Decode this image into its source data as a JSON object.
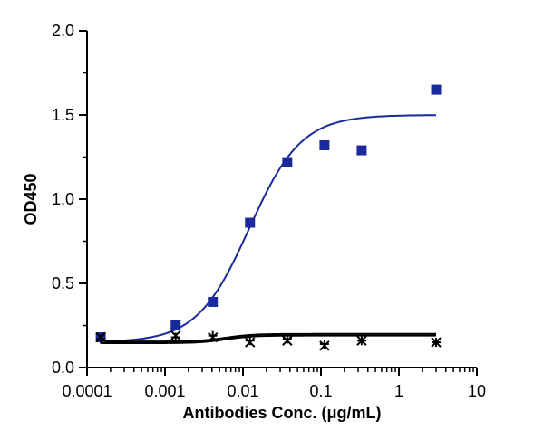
{
  "chart_data": {
    "type": "scatter",
    "title": "",
    "xlabel": "Antibodies Conc. (μg/mL)",
    "ylabel": "OD450",
    "xscale": "log",
    "xlim": [
      0.0001,
      10
    ],
    "ylim": [
      0,
      2.0
    ],
    "x_ticks": [
      0.0001,
      0.001,
      0.01,
      0.1,
      1,
      10
    ],
    "x_tick_labels": [
      "0.0001",
      "0.001",
      "0.01",
      "0.1",
      "1",
      "10"
    ],
    "y_ticks": [
      0,
      0.5,
      1.0,
      1.5,
      2.0
    ],
    "y_tick_labels": [
      "0.0",
      "0.5",
      "1.0",
      "1.5",
      "2.0"
    ],
    "grid": false,
    "series": [
      {
        "marker": "square",
        "color": "#1a2a9c",
        "x": [
          0.00015,
          0.00137,
          0.0041,
          0.0123,
          0.037,
          0.111,
          0.333,
          3.0
        ],
        "y": [
          0.18,
          0.25,
          0.39,
          0.86,
          1.22,
          1.32,
          1.29,
          1.65
        ],
        "fit": {
          "model": "4PL",
          "bottom": 0.15,
          "top": 1.5,
          "ec50": 0.012,
          "hill": 1.3
        }
      },
      {
        "marker": "x",
        "color": "#000000",
        "x": [
          0.00015,
          0.00137,
          0.0041,
          0.0123,
          0.037,
          0.111,
          0.333,
          3.0
        ],
        "y": [
          0.18,
          0.19,
          0.18,
          0.15,
          0.16,
          0.13,
          0.16,
          0.15
        ],
        "fit": {
          "model": "4PL",
          "bottom": 0.155,
          "top": 0.2,
          "ec50": 0.006,
          "hill": 2.5
        }
      },
      {
        "marker": "plus",
        "color": "#000000",
        "x": [
          0.00015,
          0.00137,
          0.0041,
          0.0123,
          0.037,
          0.111,
          0.333,
          3.0
        ],
        "y": [
          0.17,
          0.18,
          0.19,
          0.16,
          0.17,
          0.14,
          0.16,
          0.15
        ],
        "fit": {
          "model": "4PL",
          "bottom": 0.145,
          "top": 0.19,
          "ec50": 0.006,
          "hill": 2.5
        }
      }
    ]
  }
}
